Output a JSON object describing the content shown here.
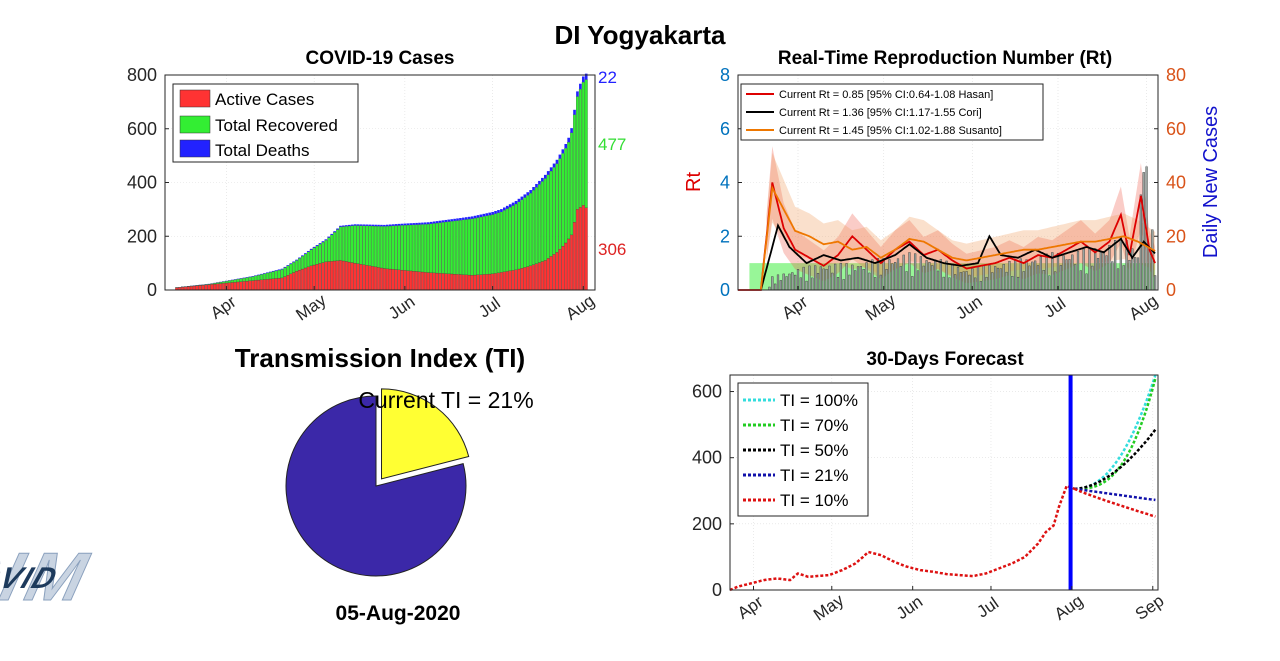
{
  "page": {
    "title": "DI Yogyakarta",
    "date": "05-Aug-2020"
  },
  "colors": {
    "active": "#ff3333",
    "recovered": "#33ee33",
    "deaths": "#2222ff",
    "rt_red": "#dd0000",
    "rt_black": "#000000",
    "rt_orange": "#ee7700",
    "axis_left": "#0072bd",
    "axis_right": "#d95319",
    "pie_main": "#3b28a8",
    "pie_ti": "#ffff33",
    "ti100": "#33dddd",
    "ti70": "#22cc22",
    "ti50": "#000000",
    "ti21": "#1111aa",
    "ti10": "#dd1111",
    "vline": "#0000ff"
  },
  "logo": {
    "text": "COVID",
    "back_text": "SIM"
  },
  "chart_data": [
    {
      "id": "cases",
      "type": "bar",
      "title": "COVID-19 Cases",
      "xlabel": "",
      "ylabel": "",
      "ylim": [
        0,
        800
      ],
      "yticks": [
        0,
        200,
        400,
        600,
        800
      ],
      "xtick_labels": [
        "Apr",
        "May",
        "Jun",
        "Jul",
        "Aug"
      ],
      "xtick_days": [
        21,
        51,
        82,
        112,
        143
      ],
      "day_range": [
        0,
        147
      ],
      "grid": true,
      "legend": [
        "Active Cases",
        "Total Recovered",
        "Total Deaths"
      ],
      "legend_position": "top-left",
      "end_labels": {
        "deaths": "22",
        "recovered": "477",
        "active": "306"
      },
      "series": [
        {
          "name": "Total Deaths",
          "keys": [
            [
              0,
              0
            ],
            [
              20,
              1
            ],
            [
              60,
              4
            ],
            [
              100,
              8
            ],
            [
              125,
              12
            ],
            [
              136,
              15
            ],
            [
              140,
              18
            ],
            [
              144,
              22
            ]
          ]
        },
        {
          "name": "Total Recovered",
          "keys": [
            [
              0,
              0
            ],
            [
              15,
              2
            ],
            [
              30,
              15
            ],
            [
              45,
              40
            ],
            [
              55,
              80
            ],
            [
              60,
              125
            ],
            [
              65,
              140
            ],
            [
              80,
              165
            ],
            [
              90,
              180
            ],
            [
              100,
              200
            ],
            [
              105,
              210
            ],
            [
              115,
              225
            ],
            [
              120,
              245
            ],
            [
              125,
              270
            ],
            [
              130,
              305
            ],
            [
              134,
              330
            ],
            [
              138,
              360
            ],
            [
              140,
              400
            ],
            [
              142,
              440
            ],
            [
              144,
              477
            ]
          ]
        },
        {
          "name": "Active Cases",
          "keys": [
            [
              0,
              5
            ],
            [
              10,
              15
            ],
            [
              20,
              25
            ],
            [
              30,
              35
            ],
            [
              40,
              45
            ],
            [
              45,
              70
            ],
            [
              50,
              90
            ],
            [
              55,
              105
            ],
            [
              60,
              110
            ],
            [
              65,
              100
            ],
            [
              75,
              80
            ],
            [
              90,
              65
            ],
            [
              105,
              55
            ],
            [
              112,
              60
            ],
            [
              120,
              75
            ],
            [
              125,
              90
            ],
            [
              130,
              110
            ],
            [
              134,
              140
            ],
            [
              137,
              175
            ],
            [
              139,
              205
            ],
            [
              141,
              300
            ],
            [
              143,
              315
            ],
            [
              144,
              306
            ]
          ]
        }
      ]
    },
    {
      "id": "rt",
      "type": "line",
      "title": "Real-Time Reproduction Number (Rt)",
      "ylabel": "Rt",
      "ylabel_right": "Daily New Cases",
      "ylim": [
        0,
        8
      ],
      "ylim_right": [
        0,
        80
      ],
      "yticks": [
        0,
        2,
        4,
        6,
        8
      ],
      "yticks_right": [
        0,
        20,
        40,
        60,
        80
      ],
      "xtick_labels": [
        "Apr",
        "May",
        "Jun",
        "Jul",
        "Aug"
      ],
      "xtick_days": [
        21,
        51,
        82,
        112,
        143
      ],
      "day_range": [
        0,
        147
      ],
      "grid": true,
      "legend_position": "top-left",
      "series": [
        {
          "name": "Current Rt = 0.85 [95% CI:0.64-1.08 Hasan]",
          "keys": [
            [
              0,
              0
            ],
            [
              8,
              0
            ],
            [
              12,
              4.0
            ],
            [
              16,
              2.3
            ],
            [
              20,
              1.5
            ],
            [
              25,
              1.2
            ],
            [
              30,
              0.9
            ],
            [
              35,
              1.3
            ],
            [
              40,
              2.0
            ],
            [
              45,
              1.5
            ],
            [
              50,
              1.0
            ],
            [
              55,
              1.5
            ],
            [
              60,
              1.8
            ],
            [
              65,
              1.3
            ],
            [
              70,
              1.5
            ],
            [
              75,
              1.1
            ],
            [
              80,
              0.8
            ],
            [
              85,
              0.9
            ],
            [
              90,
              1.0
            ],
            [
              95,
              1.2
            ],
            [
              100,
              1.0
            ],
            [
              105,
              1.3
            ],
            [
              110,
              1.2
            ],
            [
              115,
              1.5
            ],
            [
              120,
              1.8
            ],
            [
              125,
              1.4
            ],
            [
              130,
              1.8
            ],
            [
              134,
              2.8
            ],
            [
              137,
              1.3
            ],
            [
              141,
              3.5
            ],
            [
              144,
              1.5
            ],
            [
              146,
              1.0
            ]
          ]
        },
        {
          "name": "Current Rt = 1.36 [95% CI:1.17-1.55 Cori]",
          "keys": [
            [
              8,
              0
            ],
            [
              14,
              2.4
            ],
            [
              18,
              1.6
            ],
            [
              24,
              1.0
            ],
            [
              30,
              1.3
            ],
            [
              36,
              1.1
            ],
            [
              42,
              1.2
            ],
            [
              48,
              1.0
            ],
            [
              55,
              1.3
            ],
            [
              60,
              1.7
            ],
            [
              66,
              1.2
            ],
            [
              72,
              1.0
            ],
            [
              78,
              0.9
            ],
            [
              84,
              1.0
            ],
            [
              88,
              2.0
            ],
            [
              92,
              1.3
            ],
            [
              98,
              1.2
            ],
            [
              104,
              1.5
            ],
            [
              110,
              1.2
            ],
            [
              116,
              1.4
            ],
            [
              122,
              1.6
            ],
            [
              128,
              1.4
            ],
            [
              134,
              1.9
            ],
            [
              138,
              1.2
            ],
            [
              142,
              1.8
            ],
            [
              146,
              1.36
            ]
          ]
        },
        {
          "name": "Current Rt = 1.45 [95% CI:1.02-1.88 Susanto]",
          "keys": [
            [
              8,
              0
            ],
            [
              12,
              3.8
            ],
            [
              16,
              3.0
            ],
            [
              20,
              2.2
            ],
            [
              25,
              2.0
            ],
            [
              30,
              1.7
            ],
            [
              35,
              1.8
            ],
            [
              40,
              1.5
            ],
            [
              45,
              1.6
            ],
            [
              50,
              1.2
            ],
            [
              55,
              1.5
            ],
            [
              60,
              1.9
            ],
            [
              65,
              1.8
            ],
            [
              70,
              1.5
            ],
            [
              75,
              1.2
            ],
            [
              80,
              1.1
            ],
            [
              85,
              1.2
            ],
            [
              90,
              1.3
            ],
            [
              95,
              1.4
            ],
            [
              100,
              1.5
            ],
            [
              105,
              1.5
            ],
            [
              110,
              1.6
            ],
            [
              115,
              1.7
            ],
            [
              120,
              1.8
            ],
            [
              125,
              1.8
            ],
            [
              130,
              1.9
            ],
            [
              135,
              2.0
            ],
            [
              140,
              1.8
            ],
            [
              146,
              1.45
            ]
          ]
        }
      ],
      "daily_new_cases": {
        "keys": [
          [
            0,
            0
          ],
          [
            10,
            0
          ],
          [
            12,
            5
          ],
          [
            20,
            8
          ],
          [
            30,
            10
          ],
          [
            40,
            10
          ],
          [
            50,
            12
          ],
          [
            60,
            14
          ],
          [
            70,
            12
          ],
          [
            80,
            8
          ],
          [
            90,
            10
          ],
          [
            100,
            12
          ],
          [
            110,
            14
          ],
          [
            120,
            15
          ],
          [
            130,
            18
          ],
          [
            135,
            20
          ],
          [
            140,
            15
          ],
          [
            142,
            66
          ],
          [
            144,
            30
          ],
          [
            146,
            15
          ]
        ]
      }
    },
    {
      "id": "ti",
      "type": "pie",
      "title": "Transmission Index (TI)",
      "annotation": "Current TI = 21%",
      "values": [
        21,
        79
      ],
      "exploded_index": 0
    },
    {
      "id": "forecast",
      "type": "line",
      "title": "30-Days Forecast",
      "ylim": [
        0,
        650
      ],
      "yticks": [
        0,
        200,
        400,
        600
      ],
      "xtick_labels": [
        "Apr",
        "May",
        "Jun",
        "Jul",
        "Aug",
        "Sep"
      ],
      "xtick_days": [
        21,
        51,
        82,
        112,
        143,
        174
      ],
      "day_range": [
        12,
        176
      ],
      "forecast_start_day": 144,
      "grid": true,
      "legend_position": "top-left",
      "history": [
        [
          12,
          0
        ],
        [
          15,
          10
        ],
        [
          20,
          20
        ],
        [
          25,
          30
        ],
        [
          30,
          35
        ],
        [
          35,
          30
        ],
        [
          38,
          50
        ],
        [
          42,
          40
        ],
        [
          50,
          45
        ],
        [
          55,
          60
        ],
        [
          60,
          80
        ],
        [
          63,
          100
        ],
        [
          65,
          115
        ],
        [
          70,
          105
        ],
        [
          75,
          85
        ],
        [
          80,
          70
        ],
        [
          85,
          60
        ],
        [
          90,
          55
        ],
        [
          95,
          48
        ],
        [
          100,
          45
        ],
        [
          105,
          42
        ],
        [
          110,
          50
        ],
        [
          115,
          65
        ],
        [
          120,
          80
        ],
        [
          125,
          100
        ],
        [
          130,
          140
        ],
        [
          133,
          175
        ],
        [
          136,
          195
        ],
        [
          138,
          250
        ],
        [
          141,
          315
        ],
        [
          144,
          306
        ]
      ],
      "series": [
        {
          "name": "TI = 100%",
          "end": 650,
          "curve": 2.2
        },
        {
          "name": "TI = 70%",
          "end": 640,
          "curve": 2.8
        },
        {
          "name": "TI = 50%",
          "end": 485,
          "curve": 1.8
        },
        {
          "name": "TI = 21%",
          "end": 272,
          "curve": 1.0
        },
        {
          "name": "TI = 10%",
          "end": 222,
          "curve": 0.9
        }
      ]
    }
  ]
}
